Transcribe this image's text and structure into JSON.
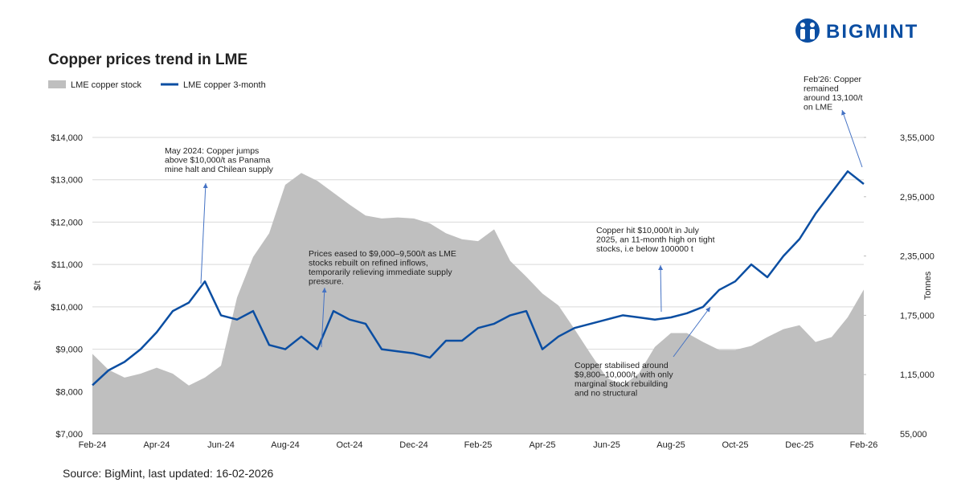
{
  "brand": "BIGMINT",
  "source": "Source: BigMint, last updated: 16-02-2026",
  "chart_data": {
    "type": "area-line",
    "title": "Copper prices trend in LME",
    "y_label": "$/t",
    "y2_label": "Tonnes",
    "categories": [
      "Feb-24",
      null,
      null,
      null,
      "Apr-24",
      null,
      null,
      null,
      "Jun-24",
      null,
      null,
      null,
      "Aug-24",
      null,
      null,
      null,
      "Oct-24",
      null,
      null,
      null,
      "Dec-24",
      null,
      null,
      null,
      "Feb-25",
      null,
      null,
      null,
      "Apr-25",
      null,
      null,
      null,
      "Jun-25",
      null,
      null,
      null,
      "Aug-25",
      null,
      null,
      null,
      "Oct-25",
      null,
      null,
      null,
      "Dec-25",
      null,
      null,
      null,
      "Feb-26"
    ],
    "series": [
      {
        "name": "LME copper stock",
        "color": "#bfbfbf",
        "axis": "y2",
        "values": [
          136000,
          120000,
          112000,
          116000,
          122000,
          116000,
          104000,
          112000,
          124000,
          193000,
          234000,
          258000,
          307000,
          319000,
          311000,
          299000,
          287000,
          276000,
          273000,
          274000,
          273000,
          268000,
          258000,
          252000,
          250000,
          262000,
          230000,
          214000,
          197000,
          185000,
          161000,
          136000,
          112000,
          104000,
          116000,
          143000,
          157000,
          157000,
          148000,
          140000,
          140000,
          144000,
          153000,
          161000,
          165000,
          148000,
          153000,
          173000,
          201000
        ]
      },
      {
        "name": "LME copper 3-month",
        "color": "#0b4ea2",
        "values": [
          8150,
          8500,
          8700,
          9000,
          9400,
          9900,
          10100,
          10600,
          9800,
          9700,
          9900,
          9100,
          9000,
          9300,
          9000,
          9900,
          9700,
          9600,
          9000,
          8950,
          8900,
          8800,
          9200,
          9200,
          9500,
          9600,
          9800,
          9900,
          9000,
          9300,
          9500,
          9600,
          9700,
          9800,
          9750,
          9700,
          9750,
          9850,
          10000,
          10400,
          10600,
          11000,
          10700,
          11200,
          11600,
          12200,
          12700,
          13200,
          12900
        ]
      }
    ],
    "ylim": [
      7000,
      14000
    ],
    "yticks": [
      {
        "value": 7000,
        "label": "$7,000"
      },
      {
        "value": 8000,
        "label": "$8,000"
      },
      {
        "value": 9000,
        "label": "$9,000"
      },
      {
        "value": 10000,
        "label": "$10,000"
      },
      {
        "value": 11000,
        "label": "$11,000"
      },
      {
        "value": 12000,
        "label": "$12,000"
      },
      {
        "value": 13000,
        "label": "$13,000"
      },
      {
        "value": 14000,
        "label": "$14,000"
      }
    ],
    "y2lim": [
      55000,
      355000
    ],
    "y2ticks": [
      {
        "value": 55000,
        "label": "55,000"
      },
      {
        "value": 115000,
        "label": "1,15,000"
      },
      {
        "value": 175000,
        "label": "1,75,000"
      },
      {
        "value": 235000,
        "label": "2,35,000"
      },
      {
        "value": 295000,
        "label": "2,95,000"
      },
      {
        "value": 355000,
        "label": "3,55,000"
      }
    ],
    "grid": true,
    "legend": "top-left",
    "annotations": [
      {
        "lines": [
          "May 2024: Copper jumps",
          "above $10,000/t as Panama",
          "mine halt and Chilean supply"
        ]
      },
      {
        "lines": [
          "Prices eased to $9,000–9,500/t as LME",
          "stocks rebuilt on refined inflows,",
          "temporarily relieving immediate supply",
          "pressure."
        ]
      },
      {
        "lines": [
          "Copper hit $10,000/t in July",
          "2025, an 11-month high on tight",
          "stocks, i.e below 100000 t"
        ]
      },
      {
        "lines": [
          "Copper stabilised around",
          "$9,800–10,000/t, with only",
          "marginal stock rebuilding",
          "and no structural"
        ]
      },
      {
        "lines": [
          "Feb'26: Copper",
          "remained",
          "around 13,100/t",
          "on LME"
        ]
      }
    ]
  }
}
